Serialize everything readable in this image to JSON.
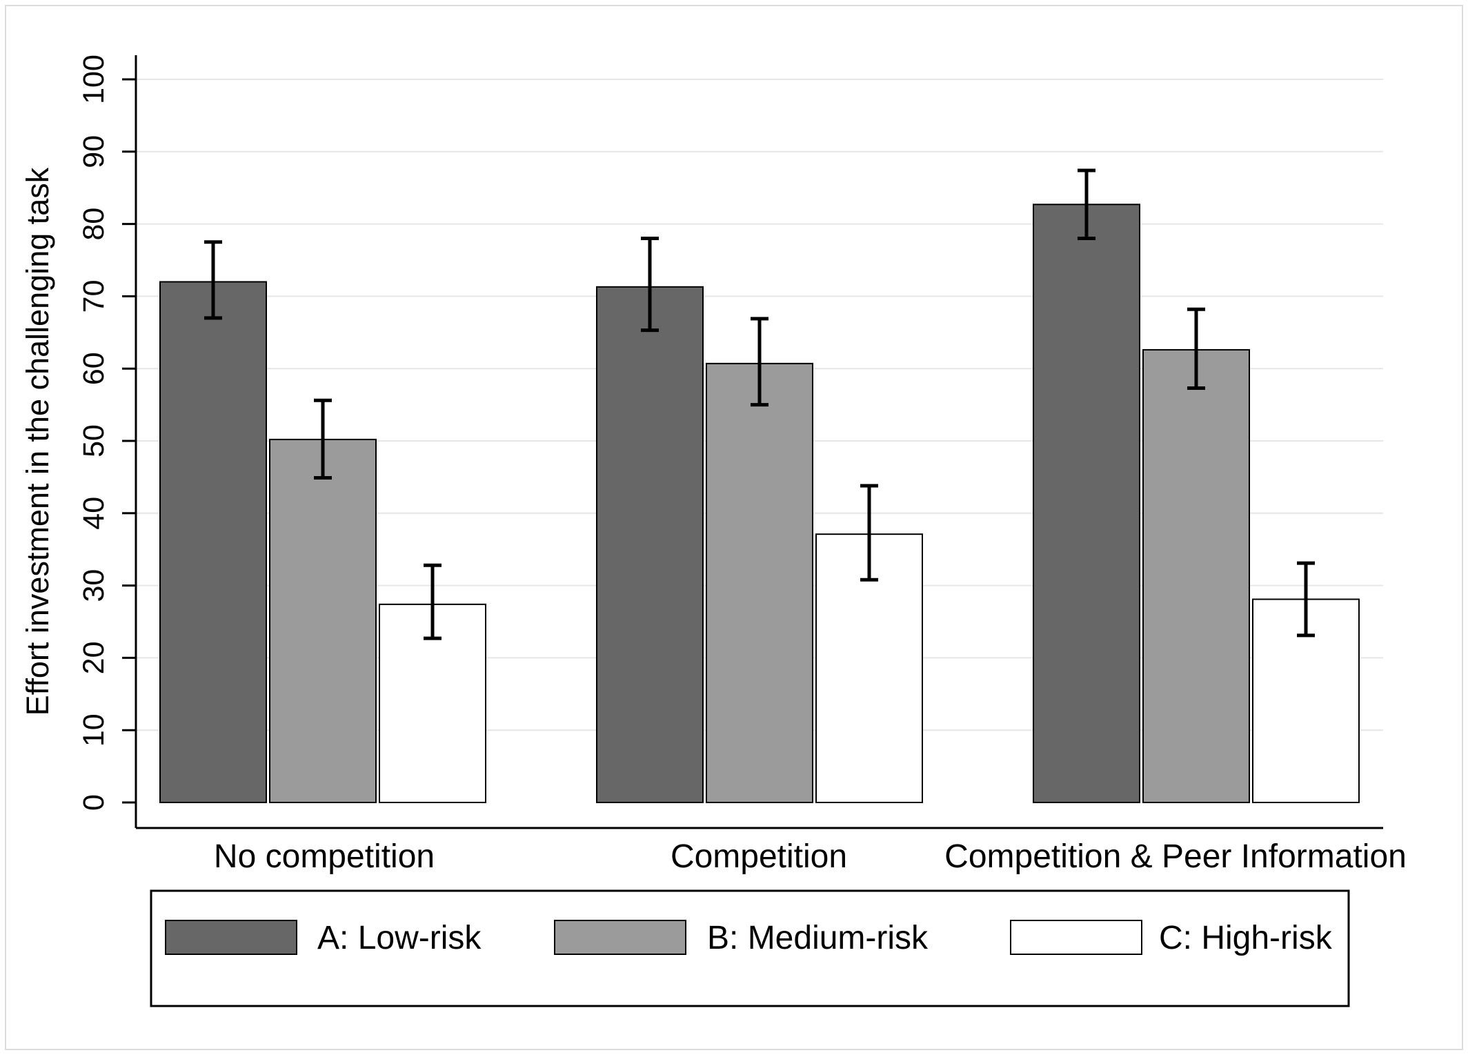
{
  "chart_data": {
    "type": "bar",
    "ylabel": "Effort investment in the challenging task",
    "xlabel": "",
    "ylim": [
      0,
      100
    ],
    "yticks": [
      0,
      10,
      20,
      30,
      40,
      50,
      60,
      70,
      80,
      90,
      100
    ],
    "grid": true,
    "legend_position": "bottom",
    "categories": [
      "No competition",
      "Competition",
      "Competition & Peer Information"
    ],
    "series": [
      {
        "name": "A: Low-risk",
        "color": "#676767",
        "values": [
          72,
          71.3,
          82.7
        ],
        "error_low": [
          67,
          65.3,
          78
        ],
        "error_high": [
          77.5,
          78,
          87.4
        ]
      },
      {
        "name": "B: Medium-risk",
        "color": "#9b9b9b",
        "values": [
          50.2,
          60.7,
          62.6
        ],
        "error_low": [
          44.9,
          55,
          57.3
        ],
        "error_high": [
          55.6,
          66.9,
          68.2
        ]
      },
      {
        "name": "C: High-risk",
        "color": "#ffffff",
        "values": [
          27.4,
          37.1,
          28.1
        ],
        "error_low": [
          22.7,
          30.8,
          23.1
        ],
        "error_high": [
          32.8,
          43.8,
          33.1
        ]
      }
    ]
  }
}
